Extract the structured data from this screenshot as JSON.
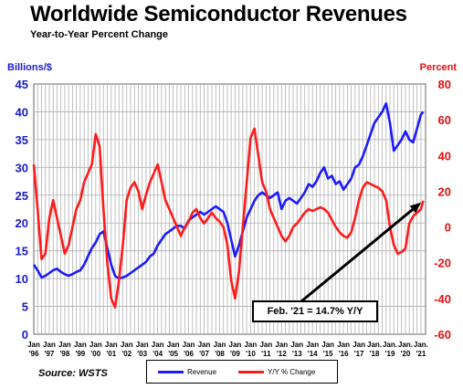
{
  "title": "Worldwide Semiconductor Revenues",
  "subtitle": "Year-to-Year Percent Change",
  "source": "Source: WSTS",
  "callout": "Feb. '21 = 14.7% Y/Y",
  "colors": {
    "revenue": "#1a1aff",
    "yoy": "#ff1a1a",
    "axis_left": "#1a1acc",
    "axis_right": "#e01010"
  },
  "chart_data": {
    "type": "line",
    "title": "Worldwide Semiconductor Revenues",
    "subtitle": "Year-to-Year Percent Change",
    "left_axis": {
      "label": "Billions/$",
      "ylim": [
        0,
        45
      ],
      "ticks": [
        0,
        5,
        10,
        15,
        20,
        25,
        30,
        35,
        40,
        45
      ]
    },
    "right_axis": {
      "label": "Percent",
      "ylim": [
        -60,
        80
      ],
      "ticks": [
        -60,
        -40,
        -20,
        0,
        20,
        40,
        60,
        80
      ]
    },
    "x_ticks": [
      {
        "top": "Jan",
        "bottom": "'96"
      },
      {
        "top": "Jan",
        "bottom": "'97"
      },
      {
        "top": "Jan",
        "bottom": "'98"
      },
      {
        "top": "Jan",
        "bottom": "'99"
      },
      {
        "top": "Jan",
        "bottom": "'00"
      },
      {
        "top": "Jan",
        "bottom": "'01"
      },
      {
        "top": "Jan",
        "bottom": "'02"
      },
      {
        "top": "Jan",
        "bottom": "'03"
      },
      {
        "top": "Jan",
        "bottom": "'04"
      },
      {
        "top": "Jan",
        "bottom": "'05"
      },
      {
        "top": "Jan",
        "bottom": "'06"
      },
      {
        "top": "Jan",
        "bottom": "'07"
      },
      {
        "top": "Jan",
        "bottom": "'08"
      },
      {
        "top": "Jan",
        "bottom": "'09"
      },
      {
        "top": "Jan",
        "bottom": "'10"
      },
      {
        "top": "Jan",
        "bottom": "'11"
      },
      {
        "top": "Jan",
        "bottom": "'12"
      },
      {
        "top": "Jan",
        "bottom": "'13"
      },
      {
        "top": "Jan",
        "bottom": "'14"
      },
      {
        "top": "Jan",
        "bottom": "'15"
      },
      {
        "top": "Jan",
        "bottom": "'16"
      },
      {
        "top": "Jan",
        "bottom": "'17"
      },
      {
        "top": "Jan.",
        "bottom": "'18"
      },
      {
        "top": "Jan.",
        "bottom": "'19"
      },
      {
        "top": "Jan.",
        "bottom": "'20"
      },
      {
        "top": "Jan.",
        "bottom": "'21"
      }
    ],
    "grid": true,
    "legend_position": "bottom",
    "series": [
      {
        "name": "Revenue",
        "axis": "left",
        "x": [
          1996.0,
          1996.25,
          1996.5,
          1996.75,
          1997.0,
          1997.25,
          1997.5,
          1997.75,
          1998.0,
          1998.25,
          1998.5,
          1998.75,
          1999.0,
          1999.25,
          1999.5,
          1999.75,
          2000.0,
          2000.25,
          2000.5,
          2000.75,
          2001.0,
          2001.25,
          2001.5,
          2001.75,
          2002.0,
          2002.25,
          2002.5,
          2002.75,
          2003.0,
          2003.25,
          2003.5,
          2003.75,
          2004.0,
          2004.25,
          2004.5,
          2004.75,
          2005.0,
          2005.25,
          2005.5,
          2005.75,
          2006.0,
          2006.25,
          2006.5,
          2006.75,
          2007.0,
          2007.25,
          2007.5,
          2007.75,
          2008.0,
          2008.25,
          2008.5,
          2008.75,
          2009.0,
          2009.25,
          2009.5,
          2009.75,
          2010.0,
          2010.25,
          2010.5,
          2010.75,
          2011.0,
          2011.25,
          2011.5,
          2011.75,
          2012.0,
          2012.25,
          2012.5,
          2012.75,
          2013.0,
          2013.25,
          2013.5,
          2013.75,
          2014.0,
          2014.25,
          2014.5,
          2014.75,
          2015.0,
          2015.25,
          2015.5,
          2015.75,
          2016.0,
          2016.25,
          2016.5,
          2016.75,
          2017.0,
          2017.25,
          2017.5,
          2017.75,
          2018.0,
          2018.25,
          2018.5,
          2018.75,
          2019.0,
          2019.25,
          2019.5,
          2019.75,
          2020.0,
          2020.25,
          2020.5,
          2020.75,
          2021.0,
          2021.15
        ],
        "values": [
          12.5,
          11.5,
          10.2,
          10.5,
          11.0,
          11.5,
          11.8,
          11.2,
          10.8,
          10.5,
          10.8,
          11.2,
          11.5,
          12.5,
          14.0,
          15.5,
          16.5,
          18.0,
          18.5,
          15.5,
          12.5,
          10.5,
          10.0,
          10.2,
          10.5,
          11.0,
          11.5,
          12.0,
          12.5,
          13.0,
          14.0,
          14.5,
          16.0,
          17.0,
          18.0,
          18.5,
          19.0,
          19.5,
          19.5,
          19.0,
          20.5,
          21.0,
          21.5,
          22.0,
          21.5,
          22.0,
          22.5,
          23.0,
          22.5,
          22.0,
          20.0,
          17.0,
          14.0,
          16.0,
          18.5,
          21.0,
          22.5,
          24.0,
          25.0,
          25.5,
          25.0,
          24.5,
          25.0,
          25.5,
          22.5,
          24.0,
          24.5,
          24.0,
          23.5,
          24.5,
          25.5,
          27.0,
          26.5,
          27.5,
          29.0,
          30.0,
          28.0,
          28.5,
          27.0,
          27.5,
          26.0,
          27.0,
          28.0,
          30.0,
          30.5,
          32.0,
          34.0,
          36.0,
          38.0,
          39.0,
          40.0,
          41.5,
          38.0,
          33.0,
          34.0,
          35.0,
          36.5,
          35.0,
          34.5,
          37.0,
          39.5,
          40.0
        ]
      },
      {
        "name": "Y/Y % Change",
        "axis": "right",
        "x": [
          1996.0,
          1996.25,
          1996.5,
          1996.75,
          1997.0,
          1997.25,
          1997.5,
          1997.75,
          1998.0,
          1998.25,
          1998.5,
          1998.75,
          1999.0,
          1999.25,
          1999.5,
          1999.75,
          2000.0,
          2000.25,
          2000.5,
          2000.75,
          2001.0,
          2001.25,
          2001.5,
          2001.75,
          2002.0,
          2002.25,
          2002.5,
          2002.75,
          2003.0,
          2003.25,
          2003.5,
          2003.75,
          2004.0,
          2004.25,
          2004.5,
          2004.75,
          2005.0,
          2005.25,
          2005.5,
          2005.75,
          2006.0,
          2006.25,
          2006.5,
          2006.75,
          2007.0,
          2007.25,
          2007.5,
          2007.75,
          2008.0,
          2008.25,
          2008.5,
          2008.75,
          2009.0,
          2009.25,
          2009.5,
          2009.75,
          2010.0,
          2010.25,
          2010.5,
          2010.75,
          2011.0,
          2011.25,
          2011.5,
          2011.75,
          2012.0,
          2012.25,
          2012.5,
          2012.75,
          2013.0,
          2013.25,
          2013.5,
          2013.75,
          2014.0,
          2014.25,
          2014.5,
          2014.75,
          2015.0,
          2015.25,
          2015.5,
          2015.75,
          2016.0,
          2016.25,
          2016.5,
          2016.75,
          2017.0,
          2017.25,
          2017.5,
          2017.75,
          2018.0,
          2018.25,
          2018.5,
          2018.75,
          2019.0,
          2019.25,
          2019.5,
          2019.75,
          2020.0,
          2020.25,
          2020.5,
          2020.75,
          2021.0,
          2021.15
        ],
        "values": [
          35,
          10,
          -18,
          -15,
          5,
          15,
          5,
          -5,
          -15,
          -10,
          0,
          10,
          15,
          25,
          30,
          35,
          52,
          45,
          10,
          -20,
          -40,
          -45,
          -30,
          -10,
          15,
          22,
          25,
          20,
          10,
          18,
          25,
          30,
          35,
          25,
          15,
          10,
          5,
          0,
          -5,
          0,
          3,
          8,
          10,
          5,
          2,
          5,
          8,
          5,
          3,
          0,
          -10,
          -30,
          -40,
          -25,
          0,
          25,
          50,
          55,
          40,
          25,
          20,
          10,
          5,
          0,
          -5,
          -8,
          -5,
          0,
          2,
          5,
          8,
          10,
          9,
          10,
          11,
          10,
          8,
          4,
          0,
          -3,
          -5,
          -6,
          -3,
          5,
          15,
          22,
          25,
          24,
          23,
          22,
          20,
          15,
          0,
          -10,
          -15,
          -14,
          -12,
          2,
          6,
          8,
          10,
          14.7
        ]
      }
    ]
  }
}
